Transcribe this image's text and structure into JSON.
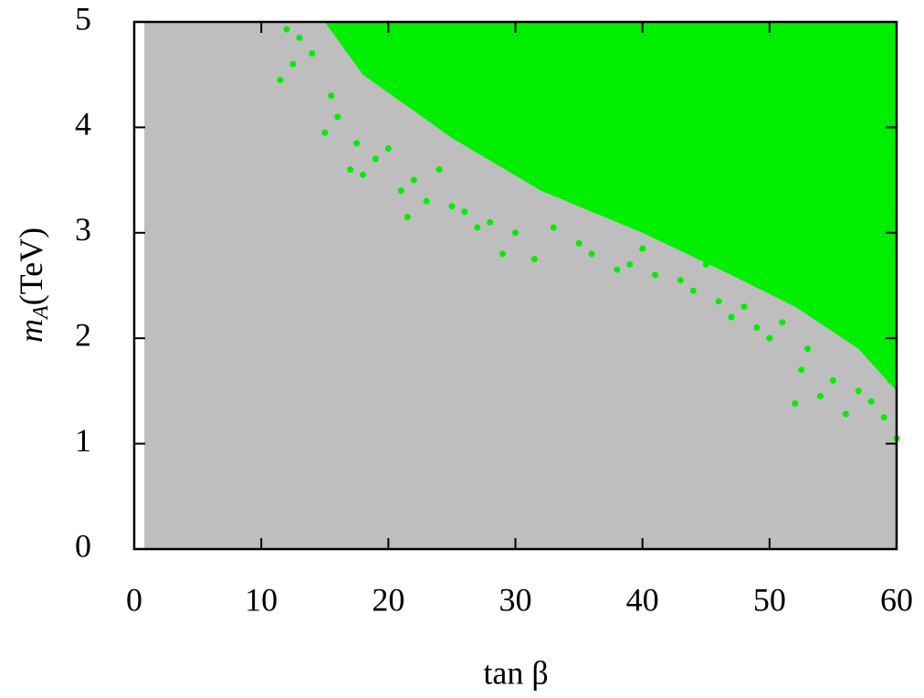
{
  "chart_data": {
    "type": "scatter",
    "xlabel": "tan β",
    "ylabel": [
      "m",
      "A",
      "(TeV)"
    ],
    "xlim": [
      0,
      60
    ],
    "ylim": [
      0,
      5
    ],
    "xticks": [
      0,
      10,
      20,
      30,
      40,
      50,
      60
    ],
    "yticks": [
      0,
      1,
      2,
      3,
      4,
      5
    ],
    "series": [
      {
        "kind": "area",
        "color": "#bebebe",
        "x": [
          0.8,
          60,
          60,
          0.8
        ],
        "y": [
          0,
          0,
          5,
          5
        ]
      },
      {
        "kind": "area",
        "color": "#00ee00",
        "x": [
          15,
          60,
          60,
          57,
          52,
          47,
          40,
          32,
          25,
          18
        ],
        "y": [
          5,
          5,
          1.5,
          1.9,
          2.3,
          2.6,
          3.0,
          3.4,
          3.9,
          4.5
        ]
      },
      {
        "kind": "points",
        "color": "#00ee00",
        "x": [
          12,
          12.5,
          11.5,
          13,
          14,
          15.5,
          15,
          16,
          17,
          17.5,
          18,
          19,
          20,
          21,
          21.5,
          22,
          23,
          24,
          25,
          26,
          27,
          28,
          29,
          30,
          31.5,
          33,
          35,
          36,
          38,
          39,
          40,
          41,
          43,
          44,
          45,
          46,
          47,
          48,
          49,
          50,
          51,
          52,
          52.5,
          53,
          54,
          55,
          56,
          57,
          58,
          59,
          59.5,
          60
        ],
        "y": [
          4.93,
          4.6,
          4.45,
          4.85,
          4.7,
          4.3,
          3.95,
          4.1,
          3.6,
          3.85,
          3.55,
          3.7,
          3.8,
          3.4,
          3.15,
          3.5,
          3.3,
          3.6,
          3.25,
          3.2,
          3.05,
          3.1,
          2.8,
          3.0,
          2.75,
          3.05,
          2.9,
          2.8,
          2.65,
          2.7,
          2.85,
          2.6,
          2.55,
          2.45,
          2.7,
          2.35,
          2.2,
          2.3,
          2.1,
          2.0,
          2.15,
          1.38,
          1.7,
          1.9,
          1.45,
          1.6,
          1.28,
          1.5,
          1.4,
          1.25,
          1.6,
          1.05
        ]
      }
    ]
  }
}
